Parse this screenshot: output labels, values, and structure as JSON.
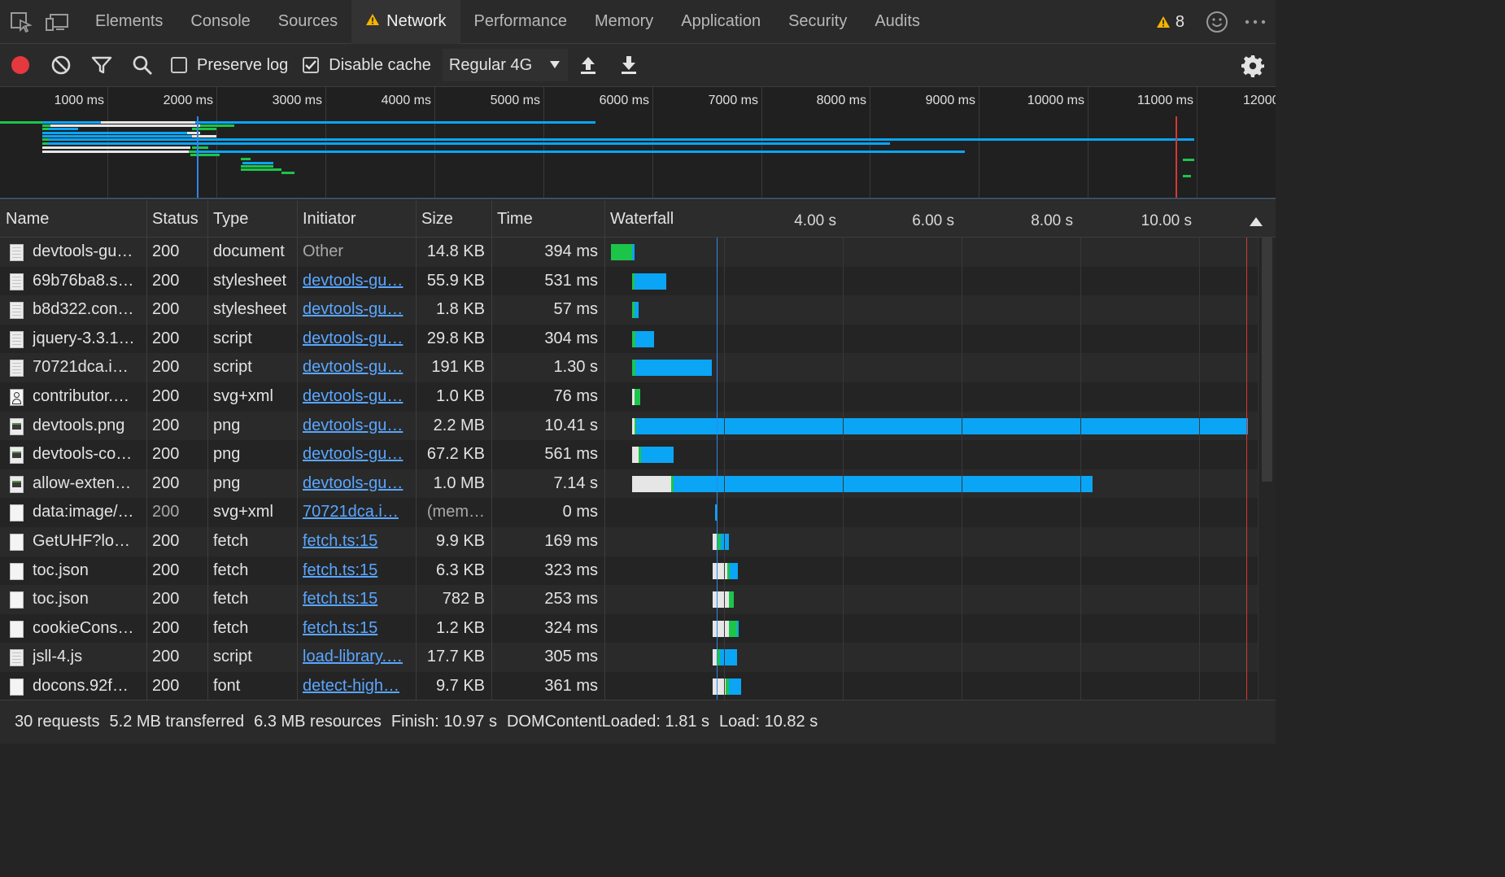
{
  "tabs": [
    {
      "label": "Elements"
    },
    {
      "label": "Console"
    },
    {
      "label": "Sources"
    },
    {
      "label": "Network",
      "active": true
    },
    {
      "label": "Performance"
    },
    {
      "label": "Memory"
    },
    {
      "label": "Application"
    },
    {
      "label": "Security"
    },
    {
      "label": "Audits"
    }
  ],
  "warnings_count": "8",
  "toolbar": {
    "preserve_log_label": "Preserve log",
    "preserve_log_checked": false,
    "disable_cache_label": "Disable cache",
    "disable_cache_checked": true,
    "throttle_value": "Regular 4G"
  },
  "overview": {
    "tick_labels": [
      "1000 ms",
      "2000 ms",
      "3000 ms",
      "4000 ms",
      "5000 ms",
      "6000 ms",
      "7000 ms",
      "8000 ms",
      "9000 ms",
      "10000 ms",
      "11000 ms",
      "12000"
    ]
  },
  "columns": {
    "name": "Name",
    "status": "Status",
    "type": "Type",
    "initiator": "Initiator",
    "size": "Size",
    "time": "Time",
    "waterfall": "Waterfall"
  },
  "waterfall_scale": [
    "4.00 s",
    "6.00 s",
    "8.00 s",
    "10.00 s"
  ],
  "requests": [
    {
      "name": "devtools-gu…",
      "status": "200",
      "type": "document",
      "initiator": "Other",
      "initiator_link": false,
      "size": "14.8 KB",
      "time": "394 ms",
      "icon": "document-icon"
    },
    {
      "name": "69b76ba8.s…",
      "status": "200",
      "type": "stylesheet",
      "initiator": "devtools-gu…",
      "initiator_link": true,
      "size": "55.9 KB",
      "time": "531 ms",
      "icon": "document-icon"
    },
    {
      "name": "b8d322.con…",
      "status": "200",
      "type": "stylesheet",
      "initiator": "devtools-gu…",
      "initiator_link": true,
      "size": "1.8 KB",
      "time": "57 ms",
      "icon": "document-icon"
    },
    {
      "name": "jquery-3.3.1…",
      "status": "200",
      "type": "script",
      "initiator": "devtools-gu…",
      "initiator_link": true,
      "size": "29.8 KB",
      "time": "304 ms",
      "icon": "document-icon"
    },
    {
      "name": "70721dca.i…",
      "status": "200",
      "type": "script",
      "initiator": "devtools-gu…",
      "initiator_link": true,
      "size": "191 KB",
      "time": "1.30 s",
      "icon": "document-icon"
    },
    {
      "name": "contributor.…",
      "status": "200",
      "type": "svg+xml",
      "initiator": "devtools-gu…",
      "initiator_link": true,
      "size": "1.0 KB",
      "time": "76 ms",
      "icon": "person-icon"
    },
    {
      "name": "devtools.png",
      "status": "200",
      "type": "png",
      "initiator": "devtools-gu…",
      "initiator_link": true,
      "size": "2.2 MB",
      "time": "10.41 s",
      "icon": "image-icon"
    },
    {
      "name": "devtools-co…",
      "status": "200",
      "type": "png",
      "initiator": "devtools-gu…",
      "initiator_link": true,
      "size": "67.2 KB",
      "time": "561 ms",
      "icon": "image-icon"
    },
    {
      "name": "allow-exten…",
      "status": "200",
      "type": "png",
      "initiator": "devtools-gu…",
      "initiator_link": true,
      "size": "1.0 MB",
      "time": "7.14 s",
      "icon": "image-icon"
    },
    {
      "name": "data:image/…",
      "status": "200",
      "type": "svg+xml",
      "initiator": "70721dca.i…",
      "initiator_link": true,
      "size": "(mem…",
      "time": "0 ms",
      "icon": "file-icon",
      "muted_status": true
    },
    {
      "name": "GetUHF?lo…",
      "status": "200",
      "type": "fetch",
      "initiator": "fetch.ts:15",
      "initiator_link": true,
      "size": "9.9 KB",
      "time": "169 ms",
      "icon": "file-icon"
    },
    {
      "name": "toc.json",
      "status": "200",
      "type": "fetch",
      "initiator": "fetch.ts:15",
      "initiator_link": true,
      "size": "6.3 KB",
      "time": "323 ms",
      "icon": "file-icon"
    },
    {
      "name": "toc.json",
      "status": "200",
      "type": "fetch",
      "initiator": "fetch.ts:15",
      "initiator_link": true,
      "size": "782 B",
      "time": "253 ms",
      "icon": "file-icon"
    },
    {
      "name": "cookieCons…",
      "status": "200",
      "type": "fetch",
      "initiator": "fetch.ts:15",
      "initiator_link": true,
      "size": "1.2 KB",
      "time": "324 ms",
      "icon": "file-icon"
    },
    {
      "name": "jsll-4.js",
      "status": "200",
      "type": "script",
      "initiator": "load-library.…",
      "initiator_link": true,
      "size": "17.7 KB",
      "time": "305 ms",
      "icon": "document-icon"
    },
    {
      "name": "docons.92f…",
      "status": "200",
      "type": "font",
      "initiator": "detect-high…",
      "initiator_link": true,
      "size": "9.7 KB",
      "time": "361 ms",
      "icon": "file-icon"
    }
  ],
  "summary": {
    "requests": "30 requests",
    "transferred": "5.2 MB transferred",
    "resources": "6.3 MB resources",
    "finish": "Finish: 10.97 s",
    "dom_content_loaded": "DOMContentLoaded: 1.81 s",
    "load": "Load: 10.82 s"
  },
  "colors": {
    "download": "#0aa5f5",
    "waiting": "#1cc54a",
    "queued": "#e6e6e6",
    "dcl_marker": "#2f86ea",
    "load_marker": "#d33a32"
  }
}
